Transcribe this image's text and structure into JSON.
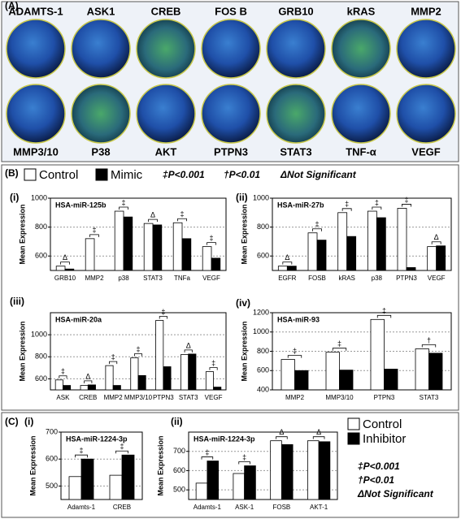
{
  "panel_a": {
    "label": "(A)",
    "labels": [
      "ADAMTS-1",
      "ASK1",
      "CREB",
      "FOS B",
      "GRB10",
      "kRAS",
      "MMP2",
      "MMP3/10",
      "P38",
      "AKT",
      "PTPN3",
      "STAT3",
      "TNF-α",
      "VEGF"
    ]
  },
  "panel_b": {
    "label": "(B)",
    "notes": [
      "‡P<0.001",
      "†P<0.01",
      "ΔNot Significant"
    ]
  },
  "panel_c": {
    "label": "(C)",
    "notes": [
      "‡P<0.001",
      "†P<0.01",
      "ΔNot Significant"
    ]
  },
  "chart_data": [
    {
      "type": "bar",
      "panel": "(i)",
      "title": "HSA-miR-125b",
      "y_label": "Mean Expression",
      "categories": [
        "GRB10",
        "MMP2",
        "p38",
        "STAT3",
        "TNFa",
        "VEGF"
      ],
      "series": [
        {
          "name": "Control",
          "color": "#ffffff",
          "values": [
            530,
            720,
            910,
            825,
            830,
            665
          ]
        },
        {
          "name": "Mimic",
          "color": "#000000",
          "values": [
            510,
            500,
            870,
            815,
            720,
            585
          ]
        }
      ],
      "significance": [
        "Δ",
        "‡",
        "‡",
        "Δ",
        "‡",
        "‡"
      ],
      "ylim": [
        500,
        1000
      ],
      "yticks": [
        600,
        800,
        1000
      ],
      "grid": true
    },
    {
      "type": "bar",
      "panel": "(ii)",
      "title": "HSA-miR-27b",
      "y_label": "Mean Expression",
      "categories": [
        "EGFR",
        "FOSB",
        "kRAS",
        "p38",
        "PTPN3",
        "VEGF"
      ],
      "series": [
        {
          "name": "Control",
          "color": "#ffffff",
          "values": [
            530,
            760,
            900,
            910,
            930,
            665
          ]
        },
        {
          "name": "Mimic",
          "color": "#000000",
          "values": [
            530,
            710,
            735,
            865,
            520,
            670
          ]
        }
      ],
      "significance": [
        "Δ",
        "‡",
        "‡",
        "‡",
        "‡",
        "Δ"
      ],
      "ylim": [
        500,
        1000
      ],
      "yticks": [
        600,
        800,
        1000
      ],
      "grid": true
    },
    {
      "type": "bar",
      "panel": "(iii)",
      "title": "HSA-miR-20a",
      "y_label": "Mean Expression",
      "categories": [
        "ASK",
        "CREB",
        "MMP2",
        "MMP3/10",
        "PTPN3",
        "STAT3",
        "VEGF"
      ],
      "series": [
        {
          "name": "Control",
          "color": "#ffffff",
          "values": [
            590,
            540,
            720,
            790,
            1130,
            820,
            665
          ]
        },
        {
          "name": "Mimic",
          "color": "#000000",
          "values": [
            540,
            545,
            540,
            630,
            710,
            825,
            525
          ]
        }
      ],
      "significance": [
        "‡",
        "Δ",
        "‡",
        "‡",
        "‡",
        "Δ",
        "‡"
      ],
      "ylim": [
        500,
        1200
      ],
      "yticks": [
        600,
        800,
        1000
      ],
      "grid": true
    },
    {
      "type": "bar",
      "panel": "(iv)",
      "title": "HSA-miR-93",
      "y_label": "Mean Expression",
      "categories": [
        "MMP2",
        "MMP3/10",
        "PTPN3",
        "STAT3"
      ],
      "series": [
        {
          "name": "Control",
          "color": "#ffffff",
          "values": [
            715,
            790,
            1130,
            825
          ]
        },
        {
          "name": "Mimic",
          "color": "#000000",
          "values": [
            600,
            605,
            615,
            780
          ]
        }
      ],
      "significance": [
        "‡",
        "‡",
        "‡",
        "†"
      ],
      "ylim": [
        400,
        1200
      ],
      "yticks": [
        400,
        600,
        800,
        1000,
        1200
      ],
      "grid": true
    },
    {
      "type": "bar",
      "panel": "(i)",
      "title": "HSA-miR-1224-3p",
      "y_label": "Mean Expression",
      "categories": [
        "Adamts-1",
        "CREB"
      ],
      "series": [
        {
          "name": "Control",
          "color": "#ffffff",
          "values": [
            535,
            540
          ]
        },
        {
          "name": "Inhibitor",
          "color": "#000000",
          "values": [
            600,
            615
          ]
        }
      ],
      "significance": [
        "‡",
        "‡"
      ],
      "ylim": [
        450,
        700
      ],
      "yticks": [
        500,
        600,
        700
      ],
      "grid": true
    },
    {
      "type": "bar",
      "panel": "(ii)",
      "title": "HSA-miR-1224-3p",
      "y_label": "Mean Expression",
      "categories": [
        "Adamts-1",
        "ASK-1",
        "FOSB",
        "AKT-1"
      ],
      "series": [
        {
          "name": "Control",
          "color": "#ffffff",
          "values": [
            535,
            585,
            755,
            755
          ]
        },
        {
          "name": "Inhibitor",
          "color": "#000000",
          "values": [
            650,
            625,
            735,
            750
          ]
        }
      ],
      "significance": [
        "‡",
        "‡",
        "Δ",
        "Δ"
      ],
      "ylim": [
        450,
        800
      ],
      "yticks": [
        500,
        600,
        700
      ],
      "grid": true
    }
  ]
}
